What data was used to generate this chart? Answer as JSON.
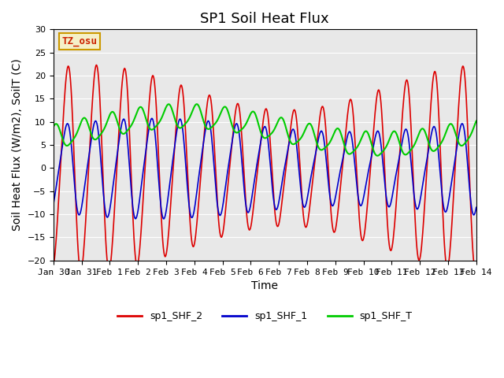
{
  "title": "SP1 Soil Heat Flux",
  "xlabel": "Time",
  "ylabel": "Soil Heat Flux (W/m2), SoilT (C)",
  "ylim": [
    -20,
    30
  ],
  "xlim_days": [
    0,
    15
  ],
  "bg_color": "#e8e8e8",
  "grid_color": "white",
  "tick_labels": [
    "Jan 30",
    "Jan 31",
    "Feb 1",
    "Feb 2",
    "Feb 3",
    "Feb 4",
    "Feb 5",
    "Feb 6",
    "Feb 7",
    "Feb 8",
    "Feb 9",
    "Feb 10",
    "Feb 11",
    "Feb 12",
    "Feb 13",
    "Feb 14"
  ],
  "tz_label": "TZ_osu",
  "legend_entries": [
    "sp1_SHF_2",
    "sp1_SHF_1",
    "sp1_SHF_T"
  ],
  "colors": {
    "sp1_SHF_2": "#dd0000",
    "sp1_SHF_1": "#0000cc",
    "sp1_SHF_T": "#00cc00"
  },
  "title_fontsize": 13,
  "axis_label_fontsize": 10,
  "tick_fontsize": 8
}
